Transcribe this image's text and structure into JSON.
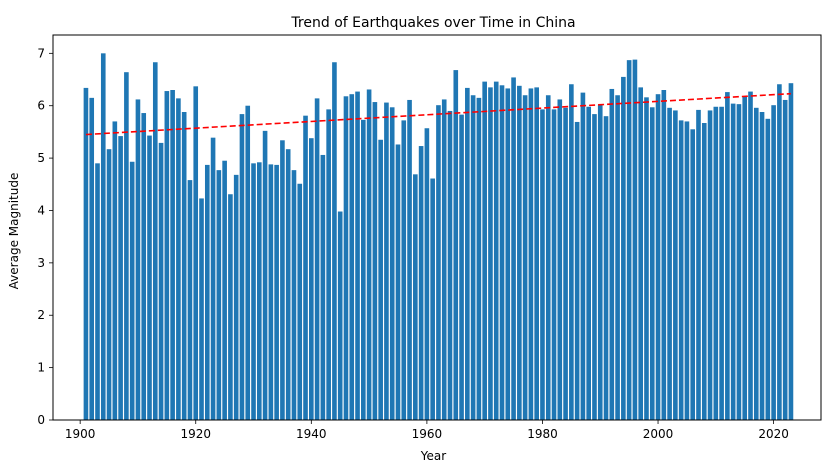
{
  "chart_data": {
    "type": "bar",
    "title": "Trend of Earthquakes over Time in China",
    "xlabel": "Year",
    "ylabel": "Average Magnitude",
    "xlim": [
      1895.3,
      2028.2
    ],
    "ylim": [
      0,
      7.35
    ],
    "xticks": [
      1900,
      1920,
      1940,
      1960,
      1980,
      2000,
      2020
    ],
    "yticks": [
      0,
      1,
      2,
      3,
      4,
      5,
      6,
      7
    ],
    "grid": false,
    "legend": "none",
    "bar_color": "#1f77b4",
    "trend_color": "#ff0000",
    "trend": {
      "type": "linear",
      "style": "dashed",
      "x": [
        1901,
        2023
      ],
      "y": [
        5.45,
        6.23
      ]
    },
    "x": [
      1901,
      1902,
      1903,
      1904,
      1905,
      1906,
      1907,
      1908,
      1909,
      1910,
      1911,
      1912,
      1913,
      1914,
      1915,
      1916,
      1917,
      1918,
      1919,
      1920,
      1921,
      1922,
      1923,
      1924,
      1925,
      1926,
      1927,
      1928,
      1929,
      1930,
      1931,
      1932,
      1933,
      1934,
      1935,
      1936,
      1937,
      1938,
      1939,
      1940,
      1941,
      1942,
      1943,
      1944,
      1945,
      1946,
      1947,
      1948,
      1949,
      1950,
      1951,
      1952,
      1953,
      1954,
      1955,
      1956,
      1957,
      1958,
      1959,
      1960,
      1961,
      1962,
      1963,
      1964,
      1965,
      1966,
      1967,
      1968,
      1969,
      1970,
      1971,
      1972,
      1973,
      1974,
      1975,
      1976,
      1977,
      1978,
      1979,
      1980,
      1981,
      1982,
      1983,
      1984,
      1985,
      1986,
      1987,
      1988,
      1989,
      1990,
      1991,
      1992,
      1993,
      1994,
      1995,
      1996,
      1997,
      1998,
      1999,
      2000,
      2001,
      2002,
      2003,
      2004,
      2005,
      2006,
      2007,
      2008,
      2009,
      2010,
      2011,
      2012,
      2013,
      2014,
      2015,
      2016,
      2017,
      2018,
      2019,
      2020,
      2021,
      2022,
      2023
    ],
    "values": [
      6.34,
      6.15,
      4.9,
      7.0,
      5.17,
      5.7,
      5.42,
      6.64,
      4.93,
      6.12,
      5.86,
      5.43,
      6.83,
      5.29,
      6.28,
      6.3,
      6.14,
      5.88,
      4.58,
      6.37,
      4.23,
      4.87,
      5.39,
      4.77,
      4.95,
      4.31,
      4.68,
      5.84,
      6.0,
      4.9,
      4.92,
      5.52,
      4.88,
      4.87,
      5.34,
      5.17,
      4.77,
      4.51,
      5.81,
      5.38,
      6.14,
      5.06,
      5.93,
      6.83,
      3.98,
      6.18,
      6.22,
      6.27,
      5.73,
      6.31,
      6.07,
      5.35,
      6.06,
      5.97,
      5.26,
      5.72,
      6.11,
      4.69,
      5.23,
      5.57,
      4.61,
      6.01,
      6.12,
      5.9,
      6.68,
      5.83,
      6.34,
      6.2,
      6.15,
      6.46,
      6.35,
      6.46,
      6.39,
      6.33,
      6.54,
      6.38,
      6.2,
      6.33,
      6.35,
      5.93,
      6.2,
      5.93,
      6.12,
      5.96,
      6.41,
      5.69,
      6.25,
      5.98,
      5.84,
      6.02,
      5.8,
      6.32,
      6.2,
      6.55,
      6.87,
      6.88,
      6.35,
      6.16,
      5.97,
      6.22,
      6.3,
      5.96,
      5.91,
      5.72,
      5.7,
      5.55,
      5.92,
      5.67,
      5.91,
      5.98,
      5.98,
      6.26,
      6.04,
      6.03,
      6.18,
      6.27,
      5.96,
      5.88,
      5.75,
      6.01,
      6.41,
      6.11,
      6.43
    ]
  }
}
